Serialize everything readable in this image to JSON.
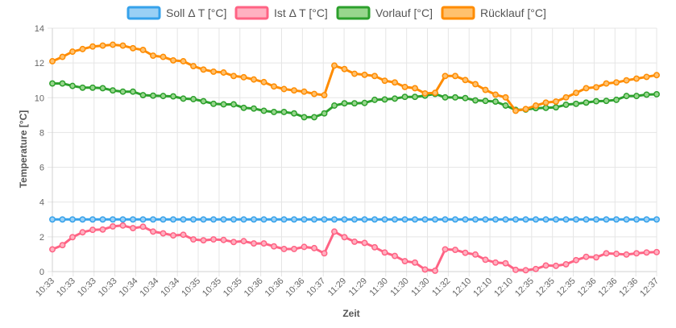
{
  "chart_data": {
    "type": "line",
    "title": "",
    "xlabel": "Zeit",
    "ylabel": "Temperature [°C]",
    "ylim": [
      0,
      14
    ],
    "yticks": [
      0,
      2,
      4,
      6,
      8,
      10,
      12,
      14
    ],
    "grid": true,
    "legend_position": "top",
    "categories": [
      "10:33",
      "10:33",
      "10:33",
      "10:33",
      "10:33",
      "10:33",
      "10:33",
      "10:33",
      "10:34",
      "10:34",
      "10:34",
      "10:34",
      "10:34",
      "10:34",
      "10:35",
      "10:35",
      "10:35",
      "10:35",
      "10:35",
      "10:35",
      "10:36",
      "10:36",
      "10:36",
      "10:36",
      "10:36",
      "10:36",
      "10:37",
      "10:37",
      "11:29",
      "11:29",
      "11:29",
      "11:29",
      "11:30",
      "11:30",
      "11:30",
      "11:30",
      "11:30",
      "11:30",
      "11:32",
      "11:32",
      "12:10",
      "12:10",
      "12:10",
      "12:10",
      "12:10",
      "12:10",
      "12:35",
      "12:35",
      "12:35",
      "12:35",
      "12:35",
      "12:35",
      "12:36",
      "12:36",
      "12:36",
      "12:36",
      "12:36",
      "12:36",
      "12:37",
      "12:37",
      "12:37"
    ],
    "tick_labels": [
      "10:33",
      "10:33",
      "10:33",
      "10:33",
      "10:34",
      "10:34",
      "10:34",
      "10:35",
      "10:35",
      "10:35",
      "10:36",
      "10:36",
      "10:36",
      "10:37",
      "11:29",
      "11:29",
      "11:30",
      "11:30",
      "11:30",
      "11:32",
      "12:10",
      "12:10",
      "12:10",
      "12:35",
      "12:35",
      "12:35",
      "12:36",
      "12:36",
      "12:36",
      "12:37"
    ],
    "series": [
      {
        "name": "Soll Δ T [°C]",
        "color": "#36a2eb",
        "fill": "#9ad0f5",
        "values": [
          3,
          3,
          3,
          3,
          3,
          3,
          3,
          3,
          3,
          3,
          3,
          3,
          3,
          3,
          3,
          3,
          3,
          3,
          3,
          3,
          3,
          3,
          3,
          3,
          3,
          3,
          3,
          3,
          3,
          3,
          3,
          3,
          3,
          3,
          3,
          3,
          3,
          3,
          3,
          3,
          3,
          3,
          3,
          3,
          3,
          3,
          3,
          3,
          3,
          3,
          3,
          3,
          3,
          3,
          3,
          3,
          3,
          3,
          3,
          3,
          3
        ]
      },
      {
        "name": "Ist Δ T [°C]",
        "color": "#ff6384",
        "fill": "#ffb1c1",
        "values": [
          1.28,
          1.52,
          1.98,
          2.26,
          2.4,
          2.42,
          2.6,
          2.65,
          2.5,
          2.58,
          2.3,
          2.2,
          2.08,
          2.12,
          1.85,
          1.8,
          1.85,
          1.82,
          1.7,
          1.75,
          1.62,
          1.62,
          1.45,
          1.3,
          1.3,
          1.42,
          1.35,
          1.05,
          2.3,
          1.98,
          1.72,
          1.65,
          1.4,
          1.1,
          0.9,
          0.6,
          0.52,
          0.12,
          0.05,
          1.28,
          1.25,
          1.08,
          0.98,
          0.68,
          0.52,
          0.48,
          0.1,
          0.08,
          0.15,
          0.35,
          0.33,
          0.42,
          0.66,
          0.85,
          0.82,
          1.05,
          1.02,
          0.98,
          1.05,
          1.1,
          1.12
        ]
      },
      {
        "name": "Vorlauf [°C]",
        "color": "#2ca02c",
        "fill": "#98d68d",
        "values": [
          10.82,
          10.82,
          10.68,
          10.58,
          10.58,
          10.55,
          10.42,
          10.35,
          10.35,
          10.15,
          10.12,
          10.1,
          10.08,
          9.95,
          9.92,
          9.8,
          9.65,
          9.62,
          9.62,
          9.42,
          9.38,
          9.25,
          9.18,
          9.18,
          9.1,
          8.88,
          8.88,
          9.1,
          9.55,
          9.68,
          9.68,
          9.7,
          9.88,
          9.9,
          9.95,
          10.05,
          10.05,
          10.12,
          10.22,
          10.02,
          10.02,
          9.98,
          9.85,
          9.82,
          9.78,
          9.55,
          9.3,
          9.32,
          9.4,
          9.42,
          9.45,
          9.6,
          9.65,
          9.72,
          9.8,
          9.82,
          9.88,
          10.1,
          10.1,
          10.18,
          10.2
        ]
      },
      {
        "name": "Rücklauf [°C]",
        "color": "#ff8c00",
        "fill": "#ffc16e",
        "values": [
          12.1,
          12.35,
          12.65,
          12.8,
          12.95,
          13.0,
          13.05,
          13.0,
          12.85,
          12.75,
          12.42,
          12.35,
          12.15,
          12.1,
          11.82,
          11.62,
          11.5,
          11.45,
          11.25,
          11.18,
          11.05,
          10.9,
          10.65,
          10.5,
          10.42,
          10.35,
          10.22,
          10.15,
          11.85,
          11.65,
          11.38,
          11.32,
          11.25,
          10.98,
          10.88,
          10.62,
          10.55,
          10.25,
          10.28,
          11.25,
          11.25,
          11.02,
          10.78,
          10.45,
          10.18,
          10.02,
          9.25,
          9.35,
          9.55,
          9.72,
          9.78,
          10.02,
          10.28,
          10.55,
          10.6,
          10.82,
          10.88,
          11.0,
          11.1,
          11.2,
          11.3
        ]
      }
    ]
  }
}
